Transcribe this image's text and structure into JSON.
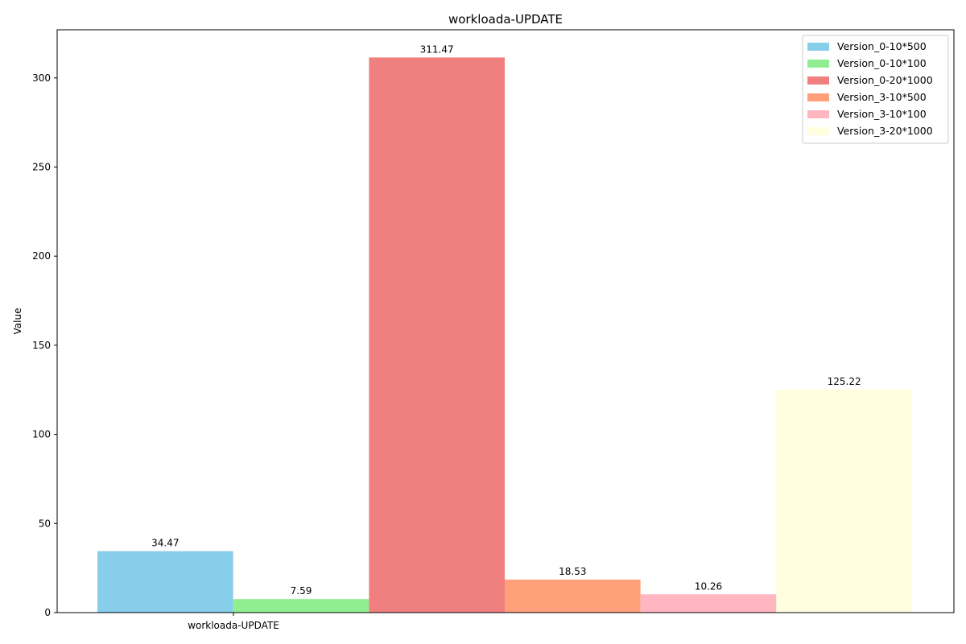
{
  "chart_data": {
    "type": "bar",
    "title": "workloada-UPDATE",
    "xlabel": "",
    "ylabel": "Value",
    "categories": [
      "workloada-UPDATE"
    ],
    "ylim": [
      0,
      327
    ],
    "yticks": [
      0,
      50,
      100,
      150,
      200,
      250,
      300
    ],
    "grid": false,
    "legend_position": "top-right",
    "series": [
      {
        "name": "Version_0-10*500",
        "values": [
          34.47
        ],
        "label": "34.47",
        "color": "#87ceeb"
      },
      {
        "name": "Version_0-10*100",
        "values": [
          7.59
        ],
        "label": "7.59",
        "color": "#90ee90"
      },
      {
        "name": "Version_0-20*1000",
        "values": [
          311.47
        ],
        "label": "311.47",
        "color": "#f08080"
      },
      {
        "name": "Version_3-10*500",
        "values": [
          18.53
        ],
        "label": "18.53",
        "color": "#ffa07a"
      },
      {
        "name": "Version_3-10*100",
        "values": [
          10.26
        ],
        "label": "10.26",
        "color": "#ffb6c1"
      },
      {
        "name": "Version_3-20*1000",
        "values": [
          125.22
        ],
        "label": "125.22",
        "color": "#ffffe0"
      }
    ]
  }
}
